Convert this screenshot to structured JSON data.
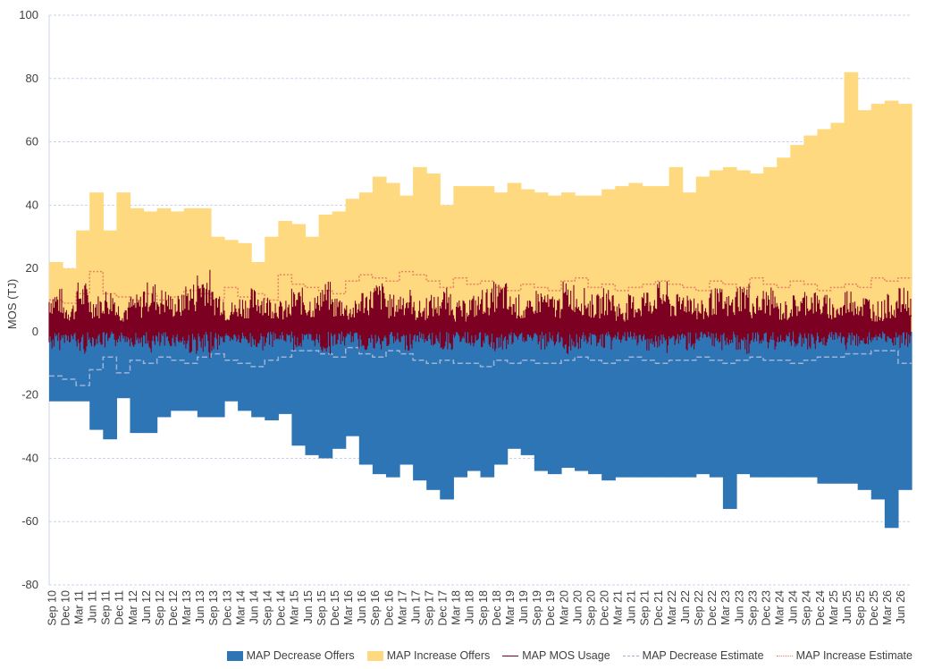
{
  "chart_data": {
    "type": "area",
    "ylabel": "MOS (TJ)",
    "ylim": [
      -80,
      100
    ],
    "yticks": [
      100,
      80,
      60,
      40,
      20,
      0,
      -20,
      -40,
      -60,
      -80
    ],
    "grid": true,
    "legend_position": "bottom",
    "x_tick_labels": [
      "Sep 10",
      "Dec 10",
      "Mar 11",
      "Jun 11",
      "Sep 11",
      "Dec 11",
      "Mar 12",
      "Jun 12",
      "Sep 12",
      "Dec 12",
      "Mar 13",
      "Jun 13",
      "Sep 13",
      "Dec 13",
      "Mar 14",
      "Jun 14",
      "Sep 14",
      "Dec 14",
      "Mar 15",
      "Jun 15",
      "Sep 15",
      "Dec 15",
      "Mar 16",
      "Jun 16",
      "Sep 16",
      "Dec 16",
      "Mar 17",
      "Jun 17",
      "Sep 17",
      "Dec 17",
      "Mar 18",
      "Jun 18",
      "Sep 18",
      "Dec 18",
      "Mar 19",
      "Jun 19",
      "Sep 19",
      "Dec 19",
      "Mar 20",
      "Jun 20",
      "Sep 20",
      "Dec 20",
      "Mar 21",
      "Jun 21",
      "Sep 21",
      "Dec 21",
      "Mar 22",
      "Jun 22",
      "Sep 22",
      "Dec 22",
      "Mar 23",
      "Jun 23",
      "Sep 23",
      "Dec 23",
      "Mar 24",
      "Jun 24",
      "Sep 24",
      "Dec 24",
      "Mar 25",
      "Jun 25",
      "Sep 25",
      "Dec 25",
      "Mar 26",
      "Jun 26"
    ],
    "series": [
      {
        "name": "MAP Decrease Offers",
        "kind": "area",
        "color": "#2e75b6",
        "values": [
          -22,
          -22,
          -22,
          -31,
          -34,
          -21,
          -32,
          -32,
          -27,
          -25,
          -25,
          -27,
          -27,
          -22,
          -25,
          -27,
          -28,
          -26,
          -36,
          -39,
          -40,
          -37,
          -33,
          -42,
          -45,
          -46,
          -42,
          -47,
          -50,
          -53,
          -46,
          -44,
          -46,
          -42,
          -37,
          -39,
          -44,
          -45,
          -43,
          -44,
          -45,
          -47,
          -46,
          -46,
          -46,
          -46,
          -46,
          -46,
          -45,
          -46,
          -56,
          -45,
          -46,
          -46,
          -46,
          -46,
          -46,
          -48,
          -48,
          -48,
          -50,
          -53,
          -62,
          -50
        ]
      },
      {
        "name": "MAP Increase Offers",
        "kind": "area",
        "color": "#ffd97f",
        "values": [
          22,
          20,
          32,
          44,
          32,
          44,
          39,
          38,
          39,
          38,
          39,
          39,
          30,
          29,
          28,
          22,
          30,
          35,
          34,
          30,
          37,
          38,
          42,
          44,
          49,
          47,
          43,
          52,
          50,
          40,
          46,
          46,
          46,
          44,
          47,
          45,
          44,
          43,
          44,
          43,
          43,
          45,
          46,
          47,
          46,
          46,
          52,
          44,
          49,
          51,
          52,
          51,
          50,
          52,
          55,
          59,
          62,
          64,
          66,
          82,
          70,
          72,
          73,
          72
        ]
      },
      {
        "name": "MAP MOS Usage",
        "kind": "line",
        "color": "#7b0022",
        "values": [
          5,
          3,
          6,
          4,
          5,
          3,
          4,
          6,
          5,
          4,
          6,
          8,
          5,
          3,
          4,
          5,
          4,
          3,
          5,
          4,
          6,
          4,
          3,
          5,
          6,
          4,
          5,
          3,
          4,
          5,
          3,
          4,
          5,
          6,
          4,
          3,
          5,
          4,
          6,
          5,
          4,
          5,
          3,
          4,
          5,
          6,
          4,
          5,
          3,
          5,
          4,
          6,
          4,
          5,
          3,
          4,
          5,
          4,
          3,
          5,
          4,
          3,
          4,
          5
        ]
      },
      {
        "name": "MAP Decrease Estimate",
        "kind": "line",
        "dash": "dashed",
        "color": "#9db3d6",
        "values": [
          -14,
          -15,
          -17,
          -12,
          -8,
          -13,
          -9,
          -10,
          -8,
          -9,
          -10,
          -8,
          -7,
          -9,
          -10,
          -11,
          -9,
          -8,
          -6,
          -6,
          -7,
          -8,
          -5,
          -7,
          -8,
          -6,
          -7,
          -9,
          -10,
          -9,
          -10,
          -10,
          -11,
          -9,
          -10,
          -9,
          -10,
          -10,
          -9,
          -8,
          -9,
          -10,
          -9,
          -8,
          -9,
          -10,
          -9,
          -9,
          -8,
          -9,
          -10,
          -9,
          -8,
          -9,
          -9,
          -10,
          -9,
          -8,
          -8,
          -7,
          -7,
          -6,
          -6,
          -10
        ]
      },
      {
        "name": "MAP Increase Estimate",
        "kind": "line",
        "dash": "dotted",
        "color": "#e8805f",
        "values": [
          10,
          9,
          12,
          19,
          12,
          11,
          10,
          12,
          10,
          11,
          13,
          12,
          10,
          14,
          11,
          12,
          10,
          18,
          15,
          14,
          13,
          12,
          16,
          18,
          17,
          16,
          19,
          18,
          16,
          14,
          17,
          15,
          16,
          14,
          13,
          15,
          14,
          13,
          16,
          17,
          14,
          15,
          13,
          14,
          15,
          16,
          15,
          14,
          13,
          16,
          15,
          14,
          17,
          15,
          14,
          16,
          15,
          13,
          14,
          15,
          14,
          17,
          16,
          17
        ]
      }
    ]
  }
}
